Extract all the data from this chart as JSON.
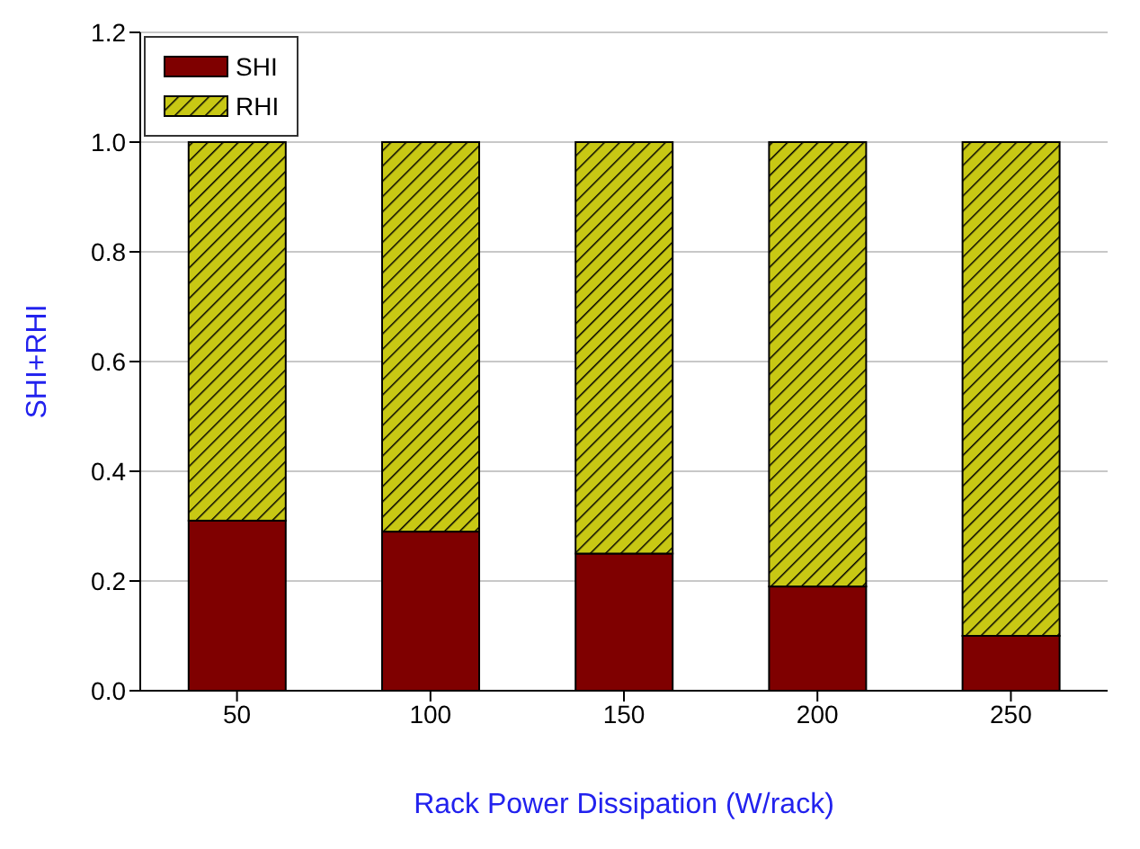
{
  "chart_data": {
    "type": "bar",
    "stacked": true,
    "categories": [
      "50",
      "100",
      "150",
      "200",
      "250"
    ],
    "series": [
      {
        "name": "SHI",
        "color": "#7f0000",
        "values": [
          0.31,
          0.29,
          0.25,
          0.19,
          0.1
        ]
      },
      {
        "name": "RHI",
        "color": "#c8c814",
        "values": [
          0.69,
          0.71,
          0.75,
          0.81,
          0.9
        ]
      }
    ],
    "xlabel": "Rack Power Dissipation (W/rack)",
    "ylabel": "SHI+RHI",
    "ylim": [
      0,
      1.2
    ],
    "yticks": [
      {
        "value": 0,
        "label": "0.0"
      },
      0.2,
      0.4,
      0.6,
      0.8,
      {
        "value": 1,
        "label": "1.0"
      },
      1.2
    ],
    "grid": "y",
    "legend": "top left"
  }
}
